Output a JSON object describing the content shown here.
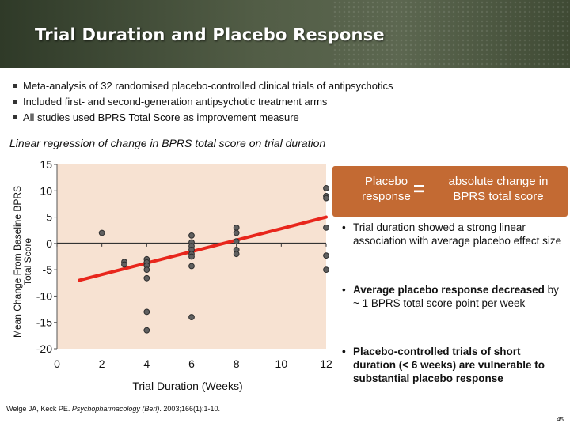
{
  "title": "Trial Duration and Placebo Response",
  "bullets": [
    "Meta-analysis of 32 randomised placebo-controlled clinical trials of antipsychotics",
    "Included first- and second-generation antipsychotic treatment arms",
    "All studies used BPRS Total Score as improvement measure"
  ],
  "subtitle": "Linear regression of change in BPRS total score on trial duration",
  "callout": {
    "left_line1": "Placebo",
    "left_line2": "response",
    "equals": "=",
    "right_line1": "absolute change in",
    "right_line2": "BPRS total score"
  },
  "points": [
    {
      "text": "Trial duration showed a strong linear association with average placebo effect size"
    },
    {
      "bold": "Average placebo response decreased",
      "rest": " by ~ 1 BPRS total score point per week"
    },
    {
      "text": "Placebo-controlled trials of short duration (< 6 weeks) are vulnerable to substantial placebo response"
    }
  ],
  "citation": {
    "pre": "Welge JA, Keck PE. ",
    "journal": "Psychopharmacology (Berl)",
    "post": ". 2003;166(1):1-10."
  },
  "page_number": "45",
  "colors": {
    "header": "#4e5a42",
    "plot_bg": "#f7e2d2",
    "callout_bg": "#c36a33",
    "regression": "#e8261c",
    "point": "#606060"
  },
  "chart_data": {
    "type": "scatter",
    "title": "",
    "xlabel": "Trial Duration (Weeks)",
    "ylabel": "Mean Change From Baseline BPRS Total Score",
    "xlim": [
      0,
      12
    ],
    "ylim": [
      -20,
      15
    ],
    "xticks": [
      0,
      2,
      4,
      6,
      8,
      10,
      12
    ],
    "yticks": [
      15,
      10,
      5,
      0,
      -5,
      -10,
      -15,
      -20
    ],
    "grid": false,
    "points": [
      {
        "x": 2,
        "y": 2
      },
      {
        "x": 3,
        "y": -3.5
      },
      {
        "x": 3,
        "y": -4
      },
      {
        "x": 4,
        "y": -3
      },
      {
        "x": 4,
        "y": -3.6
      },
      {
        "x": 4,
        "y": -4.2
      },
      {
        "x": 4,
        "y": -5
      },
      {
        "x": 4,
        "y": -6.6
      },
      {
        "x": 4,
        "y": -13
      },
      {
        "x": 4,
        "y": -16.5
      },
      {
        "x": 6,
        "y": 1.5
      },
      {
        "x": 6,
        "y": 0.2
      },
      {
        "x": 6,
        "y": -0.5
      },
      {
        "x": 6,
        "y": -1.2
      },
      {
        "x": 6,
        "y": -2
      },
      {
        "x": 6,
        "y": -2.5
      },
      {
        "x": 6,
        "y": -4.3
      },
      {
        "x": 6,
        "y": -14
      },
      {
        "x": 8,
        "y": 3
      },
      {
        "x": 8,
        "y": 2
      },
      {
        "x": 8,
        "y": 0.4
      },
      {
        "x": 8,
        "y": -1.2
      },
      {
        "x": 8,
        "y": -2
      },
      {
        "x": 12,
        "y": 10.5
      },
      {
        "x": 12,
        "y": 9
      },
      {
        "x": 12,
        "y": 8.6
      },
      {
        "x": 12,
        "y": 3
      },
      {
        "x": 12,
        "y": -2.3
      },
      {
        "x": 12,
        "y": -5
      }
    ],
    "regression": {
      "x": [
        1,
        12
      ],
      "y": [
        -7,
        5
      ]
    }
  }
}
